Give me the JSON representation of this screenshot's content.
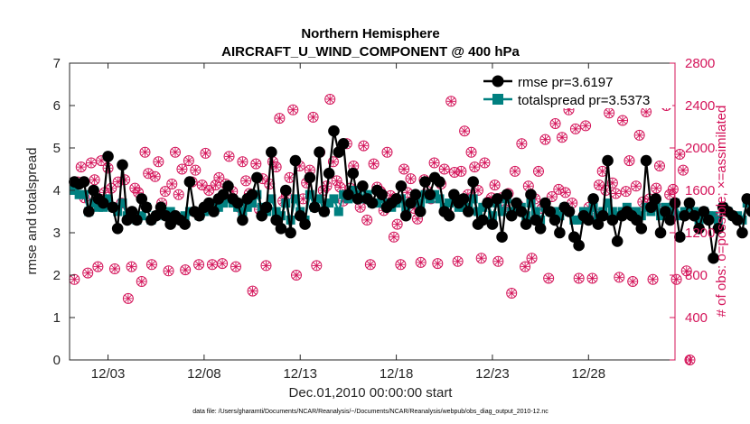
{
  "chart_data": {
    "type": "line",
    "title": "Northern Hemisphere",
    "subtitle": "AIRCRAFT_U_WIND_COMPONENT @ 400 hPa",
    "xlabel": "Dec.01,2010 00:00:00 start",
    "ylabel": "rmse and totalspread",
    "y2label": "# of obs: o=possible; ×=assimilated",
    "footer": "data file: /Users/gharamti/Documents/NCAR/Reanalysis/~/Documents/NCAR/Reanalysis/webpub/obs_diag_output_2010-12.nc",
    "xlim": [
      1.0,
      32.5
    ],
    "ylim": [
      0,
      7
    ],
    "y2lim": [
      0,
      2800
    ],
    "xticks": [
      3,
      8,
      13,
      18,
      23,
      28
    ],
    "xtick_labels": [
      "12/03",
      "12/08",
      "12/13",
      "12/18",
      "12/23",
      "12/28"
    ],
    "yticks": [
      0,
      1,
      2,
      3,
      4,
      5,
      6,
      7
    ],
    "ytick_labels": [
      "0",
      "1",
      "2",
      "3",
      "4",
      "5",
      "6",
      "7"
    ],
    "y2ticks": [
      0,
      400,
      800,
      1200,
      1600,
      2000,
      2400,
      2800
    ],
    "y2tick_labels": [
      "0",
      "400",
      "800",
      "1200",
      "1600",
      "2000",
      "2400",
      "2800"
    ],
    "obs_color": "#d4145a",
    "series": [
      {
        "name": "rmse pr=3.6197",
        "color": "#000000",
        "marker": "circle",
        "values": [
          4.2,
          4.15,
          4.2,
          3.5,
          4.0,
          3.8,
          3.7,
          4.8,
          3.6,
          3.1,
          4.6,
          3.3,
          3.5,
          3.3,
          3.8,
          3.6,
          3.3,
          3.4,
          3.6,
          3.4,
          3.2,
          3.4,
          3.3,
          3.2,
          4.2,
          3.5,
          3.4,
          3.6,
          3.7,
          3.5,
          3.8,
          3.9,
          4.1,
          3.8,
          3.7,
          3.3,
          3.8,
          3.9,
          4.3,
          3.4,
          3.6,
          4.9,
          3.3,
          3.1,
          4.0,
          3.0,
          4.7,
          3.4,
          3.2,
          4.3,
          3.6,
          4.9,
          3.5,
          4.4,
          5.4,
          4.9,
          5.1,
          3.9,
          4.4,
          3.8,
          4.1,
          3.8,
          3.7,
          4.0,
          3.9,
          3.6,
          3.7,
          3.8,
          4.1,
          3.4,
          3.7,
          3.9,
          3.5,
          4.2,
          3.9,
          4.3,
          4.2,
          3.5,
          3.4,
          3.9,
          3.7,
          3.8,
          3.5,
          4.2,
          3.2,
          3.3,
          3.7,
          3.2,
          3.8,
          2.9,
          3.9,
          3.4,
          3.7,
          3.5,
          3.2,
          3.9,
          3.3,
          3.1,
          3.7,
          3.5,
          3.3,
          3.0,
          3.6,
          3.5,
          2.9,
          2.7,
          3.4,
          3.3,
          3.8,
          3.2,
          3.4,
          4.7,
          3.3,
          2.8,
          3.4,
          3.5,
          3.4,
          3.3,
          3.1,
          4.7,
          3.6,
          3.8,
          3.0,
          3.5,
          3.3,
          3.7,
          2.9,
          3.4,
          3.7,
          3.4,
          3.1,
          3.5,
          3.3,
          2.4,
          3.1,
          3.6,
          3.5,
          3.4,
          3.3,
          3.0,
          3.8,
          3.5,
          4.1,
          3.3,
          3.0,
          3.1,
          2.6
        ]
      },
      {
        "name": "totalspread pr=3.5373",
        "color": "#008080",
        "marker": "square",
        "values": [
          4.0,
          3.9,
          3.9,
          3.5,
          3.7,
          3.6,
          3.6,
          3.8,
          3.6,
          3.5,
          3.7,
          3.4,
          3.4,
          3.3,
          3.4,
          3.6,
          3.3,
          3.4,
          3.5,
          3.4,
          3.5,
          3.3,
          3.3,
          3.4,
          3.5,
          3.5,
          3.4,
          3.5,
          3.6,
          3.5,
          3.6,
          3.7,
          3.8,
          3.7,
          3.6,
          3.5,
          3.6,
          3.7,
          3.9,
          3.6,
          3.5,
          3.8,
          3.5,
          3.4,
          3.7,
          3.3,
          3.8,
          3.5,
          3.3,
          3.9,
          3.6,
          3.8,
          3.5,
          3.7,
          3.8,
          3.5,
          3.9,
          3.8,
          4.0,
          3.9,
          3.8,
          3.9,
          3.7,
          3.7,
          3.8,
          3.7,
          3.6,
          3.7,
          3.8,
          3.6,
          3.7,
          3.8,
          3.7,
          3.9,
          3.8,
          3.9,
          3.8,
          3.6,
          3.7,
          3.8,
          3.6,
          3.6,
          3.6,
          3.8,
          3.5,
          3.6,
          3.7,
          3.4,
          3.7,
          3.5,
          3.8,
          3.5,
          3.6,
          3.6,
          3.4,
          3.7,
          3.5,
          3.3,
          3.6,
          3.5,
          3.5,
          3.4,
          3.6,
          3.5,
          3.3,
          3.3,
          3.5,
          3.5,
          3.6,
          3.4,
          3.5,
          3.7,
          3.5,
          3.4,
          3.5,
          3.6,
          3.5,
          3.5,
          3.4,
          3.6,
          3.5,
          3.6,
          3.4,
          3.6,
          3.5,
          3.7,
          3.4,
          3.5,
          3.6,
          3.5,
          3.3,
          3.5,
          3.4,
          3.4,
          3.3,
          3.6,
          3.5,
          3.4,
          3.4,
          3.3,
          3.7,
          3.6,
          3.8,
          3.4,
          3.3,
          3.3,
          3.2
        ]
      }
    ],
    "obs_possible": [
      760,
      1680,
      1820,
      1530,
      820,
      1860,
      1700,
      880,
      1880,
      1580,
      1810,
      1620,
      860,
      1680,
      1480,
      1700,
      580,
      880,
      1620,
      1580,
      740,
      1960,
      1760,
      900,
      1730,
      1870,
      1480,
      1590,
      840,
      1660,
      1960,
      1560,
      1800,
      850,
      1880,
      1680,
      1790,
      900,
      1650,
      1950,
      1600,
      900,
      1650,
      1720,
      910,
      1660,
      1920,
      1590,
      880,
      1440,
      1870,
      1690,
      1570,
      650,
      1850,
      1420,
      1710,
      890,
      1660,
      1870,
      1820,
      2280,
      1500,
      1550,
      1720,
      2360,
      800,
      1830,
      1520,
      1670,
      1790,
      2290,
      890,
      1960,
      1600,
      1640,
      2460,
      1870,
      1690,
      1630,
      1500,
      2040,
      1620,
      1830,
      1580,
      1440,
      2020,
      1320,
      900,
      1850,
      1630,
      1590,
      1410,
      1960,
      1550,
      1160,
      1280,
      900,
      1800,
      1580,
      1710,
      1430,
      1330,
      920,
      1700,
      1590,
      1520,
      1860,
      910,
      1660,
      1800,
      1380,
      2440,
      1770,
      930,
      1780,
      2160,
      1560,
      1960,
      1820,
      1600,
      960,
      1860,
      1490,
      1530,
      1650,
      930,
      1530,
      1420,
      1570,
      630,
      1780,
      1460,
      2040,
      880,
      1640,
      960,
      1520,
      1780,
      1430,
      2080,
      770,
      1540,
      2230,
      1610,
      2100,
      1580,
      2360,
      1480,
      2180,
      770,
      1340,
      2210,
      1440,
      770,
      1380,
      1650,
      1780,
      1600,
      2330,
      1670,
      1570,
      780,
      2260,
      1590,
      1880,
      740,
      1640,
      2120,
      1490,
      2340,
      1520,
      760,
      1620,
      1830,
      1430,
      2400,
      1560,
      1610,
      760,
      1940,
      1790,
      840,
      0
    ],
    "obs_assimilated": [
      760,
      1680,
      1820,
      1530,
      820,
      1860,
      1700,
      880,
      1880,
      1580,
      1810,
      1620,
      860,
      1680,
      1480,
      1700,
      580,
      880,
      1620,
      1580,
      740,
      1960,
      1760,
      900,
      1730,
      1870,
      1480,
      1590,
      840,
      1660,
      1960,
      1560,
      1800,
      850,
      1880,
      1680,
      1790,
      900,
      1650,
      1950,
      1600,
      900,
      1650,
      1720,
      910,
      1660,
      1920,
      1590,
      880,
      1440,
      1870,
      1690,
      1570,
      650,
      1850,
      1420,
      1710,
      890,
      1660,
      1870,
      1820,
      2280,
      1500,
      1550,
      1720,
      2360,
      800,
      1830,
      1520,
      1670,
      1790,
      2290,
      890,
      1960,
      1600,
      1640,
      2460,
      1870,
      1690,
      1630,
      1500,
      2040,
      1620,
      1830,
      1580,
      1440,
      2020,
      1320,
      900,
      1850,
      1630,
      1590,
      1410,
      1960,
      1550,
      1160,
      1280,
      900,
      1800,
      1580,
      1710,
      1430,
      1330,
      920,
      1700,
      1590,
      1520,
      1860,
      910,
      1660,
      1800,
      1380,
      2440,
      1770,
      930,
      1780,
      2160,
      1560,
      1960,
      1820,
      1600,
      960,
      1860,
      1490,
      1530,
      1650,
      930,
      1530,
      1420,
      1570,
      630,
      1780,
      1460,
      2040,
      880,
      1640,
      960,
      1520,
      1780,
      1430,
      2080,
      770,
      1540,
      2230,
      1610,
      2100,
      1580,
      2360,
      1480,
      2180,
      770,
      1340,
      2210,
      1440,
      770,
      1380,
      1650,
      1780,
      1600,
      2330,
      1670,
      1570,
      780,
      2260,
      1590,
      1880,
      740,
      1640,
      2120,
      1490,
      2340,
      1520,
      760,
      1620,
      1830,
      1430,
      2400,
      1560,
      1610,
      760,
      1940,
      1790,
      840,
      0
    ]
  }
}
